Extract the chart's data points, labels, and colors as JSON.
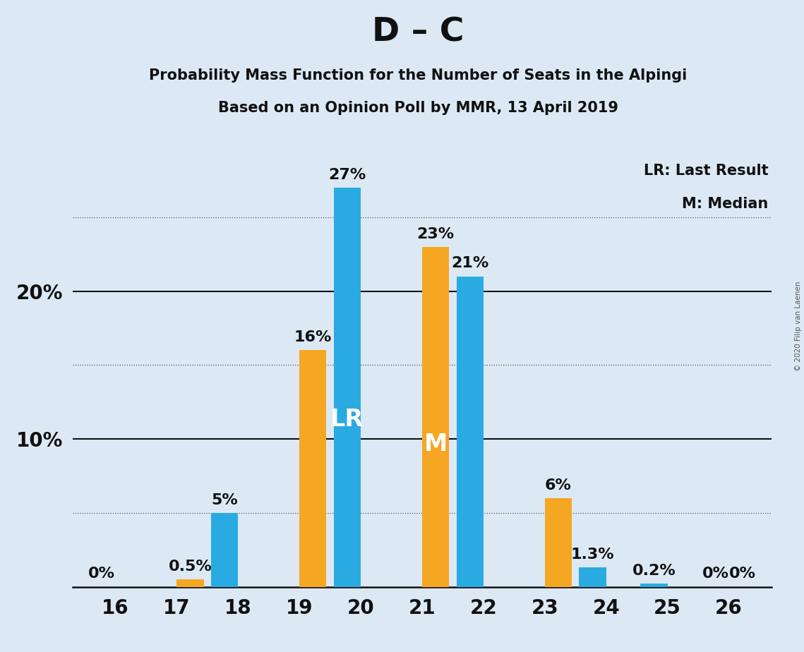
{
  "title": "D – C",
  "subtitle1": "Probability Mass Function for the Number of Seats in the Alpingi",
  "subtitle2": "Based on an Opinion Poll by MMR, 13 April 2019",
  "copyright": "© 2020 Filip van Laenen",
  "seats": [
    16,
    17,
    18,
    19,
    20,
    21,
    22,
    23,
    24,
    25,
    26
  ],
  "blue_values": [
    0.0,
    0.0,
    5.0,
    0.0,
    27.0,
    0.0,
    21.0,
    0.0,
    1.3,
    0.2,
    0.0
  ],
  "orange_values": [
    0.0,
    0.5,
    0.0,
    16.0,
    0.0,
    23.0,
    0.0,
    6.0,
    0.0,
    0.0,
    0.0
  ],
  "blue_color": "#29ABE2",
  "orange_color": "#F5A623",
  "background_color": "#DCE9F5",
  "LR_seat": 20,
  "M_seat": 21,
  "ylim_max": 30,
  "solid_lines": [
    10,
    20
  ],
  "dotted_lines": [
    5,
    15,
    25
  ],
  "ytick_positions": [
    10,
    20
  ],
  "ytick_labels": [
    "10%",
    "20%"
  ],
  "legend_text1": "LR: Last Result",
  "legend_text2": "M: Median",
  "bar_width": 0.44,
  "title_fontsize": 34,
  "subtitle_fontsize": 15,
  "bar_label_fontsize": 16,
  "inner_label_fontsize": 24,
  "axis_tick_fontsize": 20,
  "legend_fontsize": 15
}
